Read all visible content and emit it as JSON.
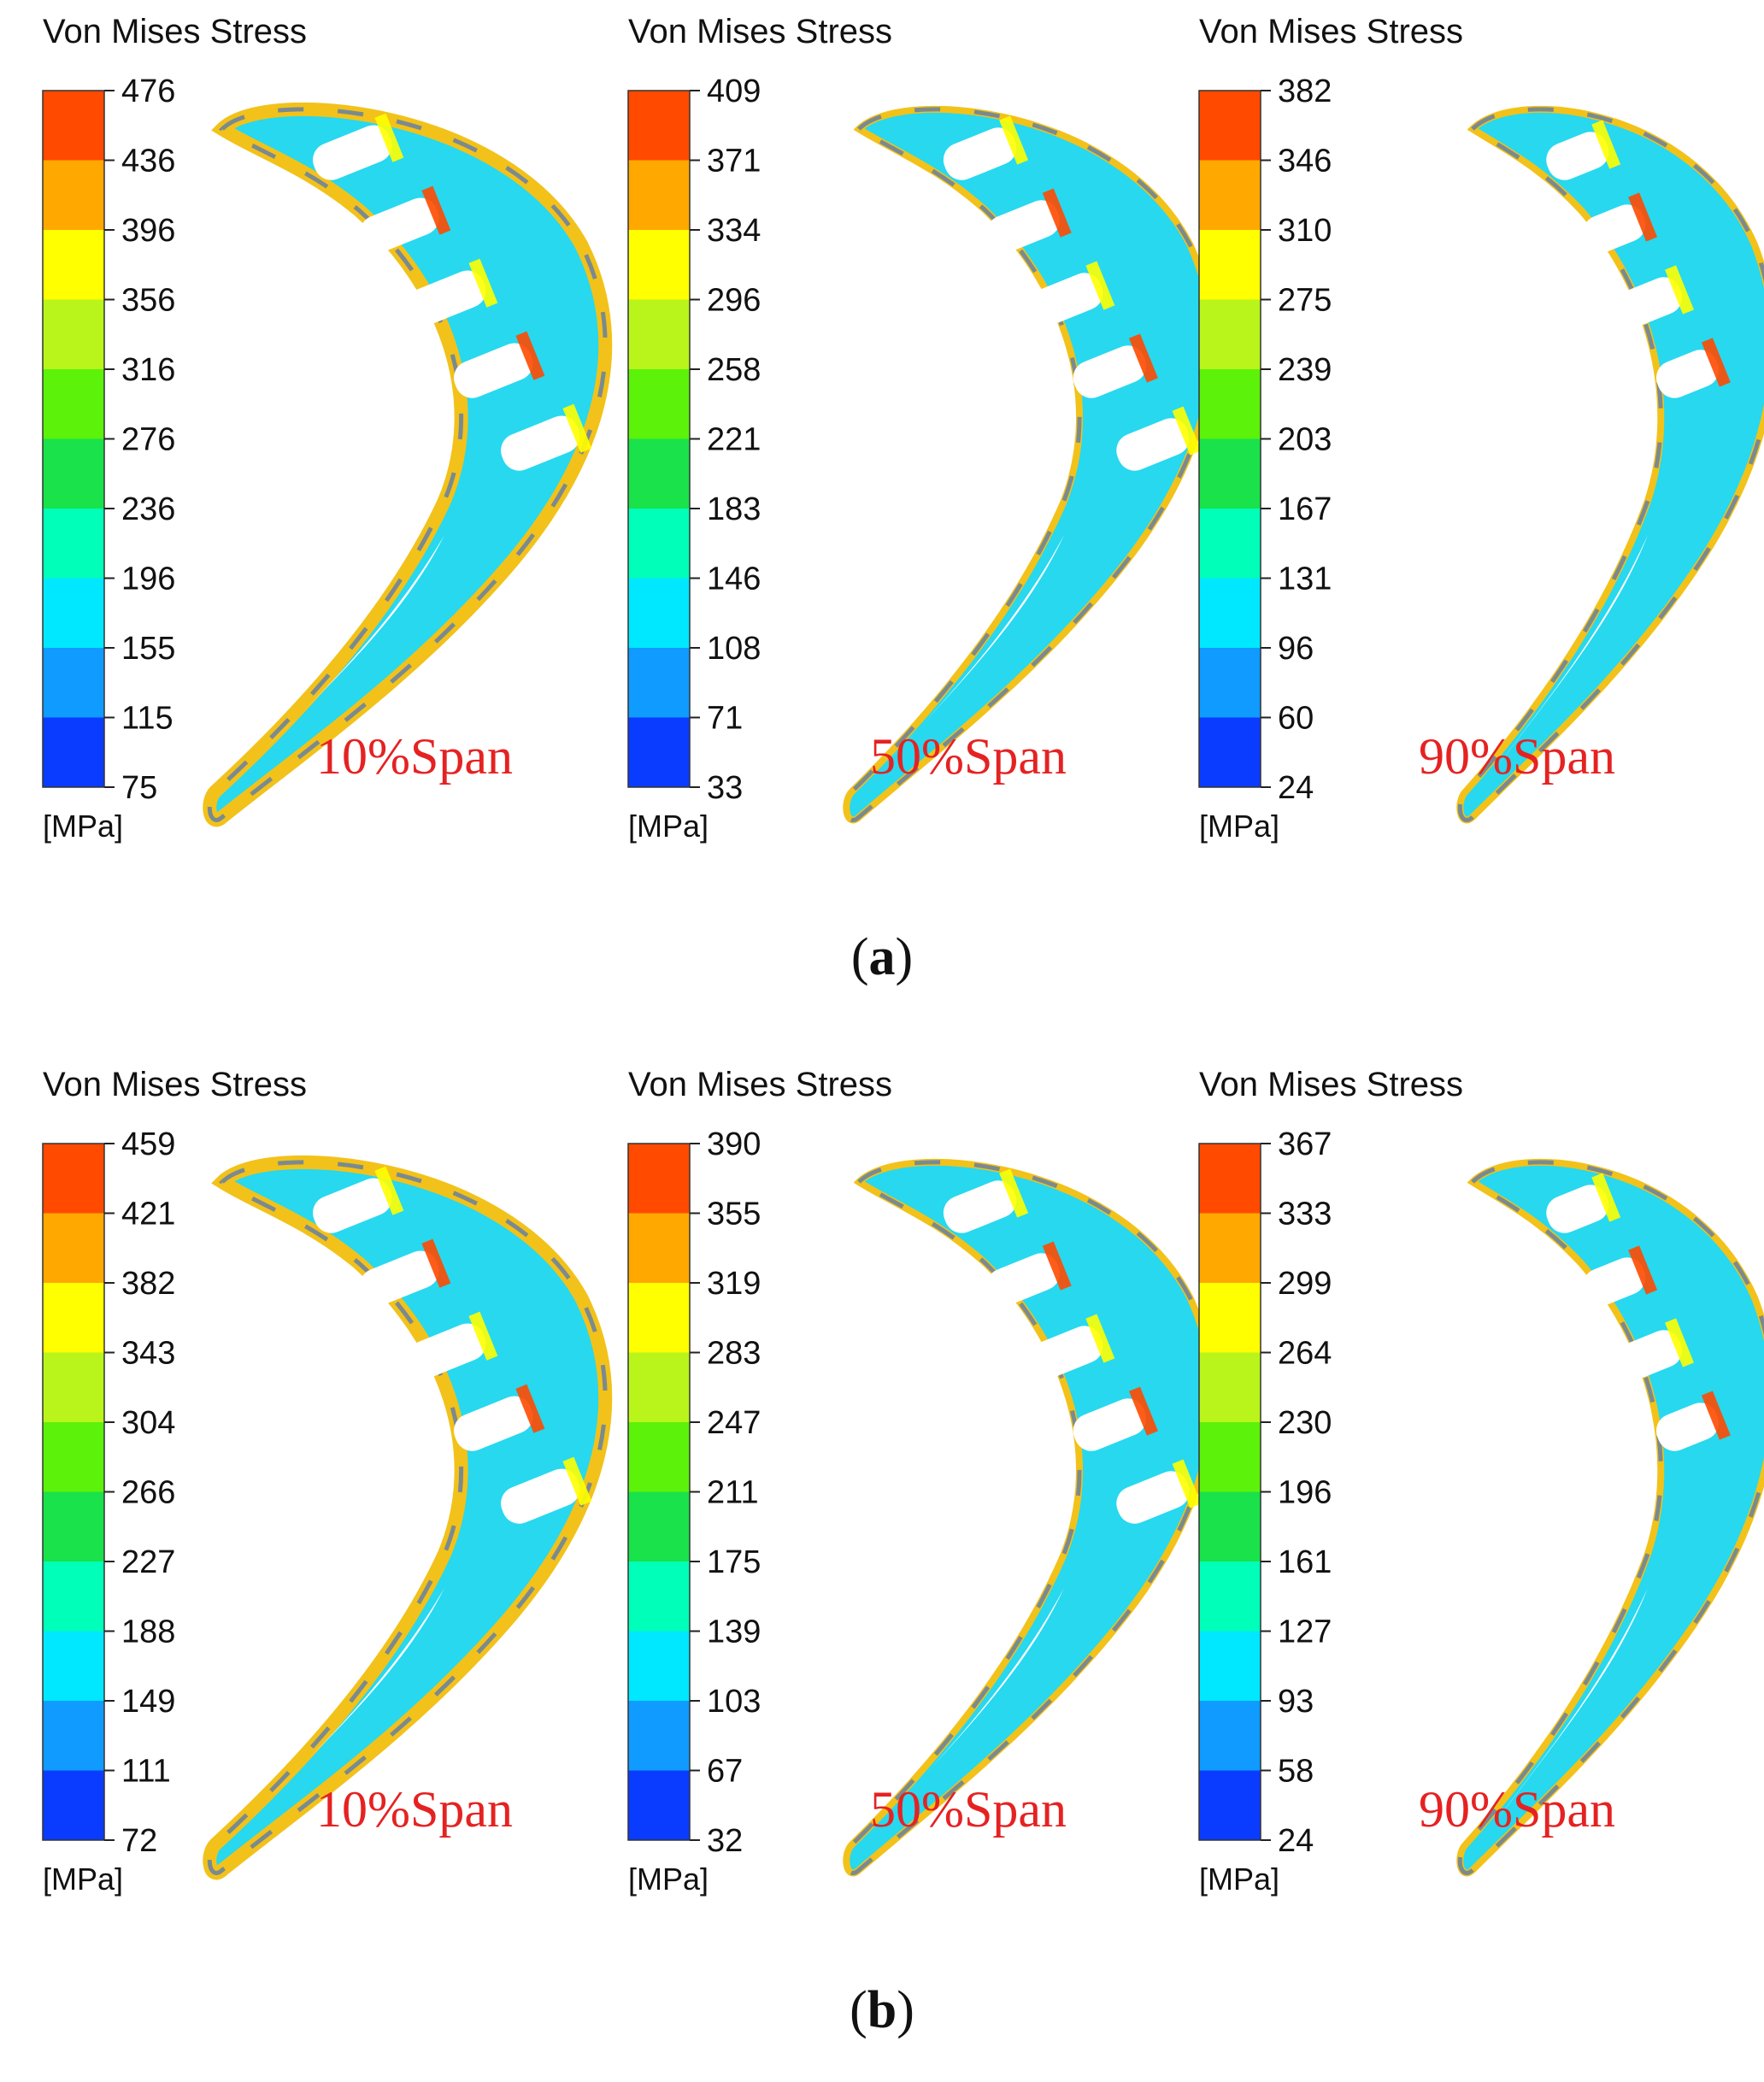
{
  "colors": {
    "bands": [
      "#0a3cff",
      "#0f9bff",
      "#00e8ff",
      "#00ffb8",
      "#19e24a",
      "#5cf20a",
      "#b9f51a",
      "#ffff00",
      "#ffa800",
      "#ff4a00"
    ],
    "blade_fill": "#27d8ef",
    "blade_inner": "#1a5cf0",
    "blade_outer": "#f2c21a",
    "span_text": "#e52222"
  },
  "figure": {
    "panels": [
      {
        "id": "a",
        "label_open": "(",
        "label_letter": "a",
        "label_close": ")",
        "contours": [
          {
            "legend_title": "Von Mises Stress",
            "unit": "[MPa]",
            "span_label": "10%Span",
            "ticks": [
              "476",
              "436",
              "396",
              "356",
              "316",
              "276",
              "236",
              "196",
              "155",
              "115",
              "75"
            ]
          },
          {
            "legend_title": "Von Mises Stress",
            "unit": "[MPa]",
            "span_label": "50%Span",
            "ticks": [
              "409",
              "371",
              "334",
              "296",
              "258",
              "221",
              "183",
              "146",
              "108",
              "71",
              "33"
            ]
          },
          {
            "legend_title": "Von Mises Stress",
            "unit": "[MPa]",
            "span_label": "90%Span",
            "ticks": [
              "382",
              "346",
              "310",
              "275",
              "239",
              "203",
              "167",
              "131",
              "96",
              "60",
              "24"
            ]
          }
        ]
      },
      {
        "id": "b",
        "label_open": "(",
        "label_letter": "b",
        "label_close": ")",
        "contours": [
          {
            "legend_title": "Von Mises Stress",
            "unit": "[MPa]",
            "span_label": "10%Span",
            "ticks": [
              "459",
              "421",
              "382",
              "343",
              "304",
              "266",
              "227",
              "188",
              "149",
              "111",
              "72"
            ]
          },
          {
            "legend_title": "Von Mises Stress",
            "unit": "[MPa]",
            "span_label": "50%Span",
            "ticks": [
              "390",
              "355",
              "319",
              "283",
              "247",
              "211",
              "175",
              "139",
              "103",
              "67",
              "32"
            ]
          },
          {
            "legend_title": "Von Mises Stress",
            "unit": "[MPa]",
            "span_label": "90%Span",
            "ticks": [
              "367",
              "333",
              "299",
              "264",
              "230",
              "196",
              "161",
              "127",
              "93",
              "58",
              "24"
            ]
          }
        ]
      }
    ]
  }
}
